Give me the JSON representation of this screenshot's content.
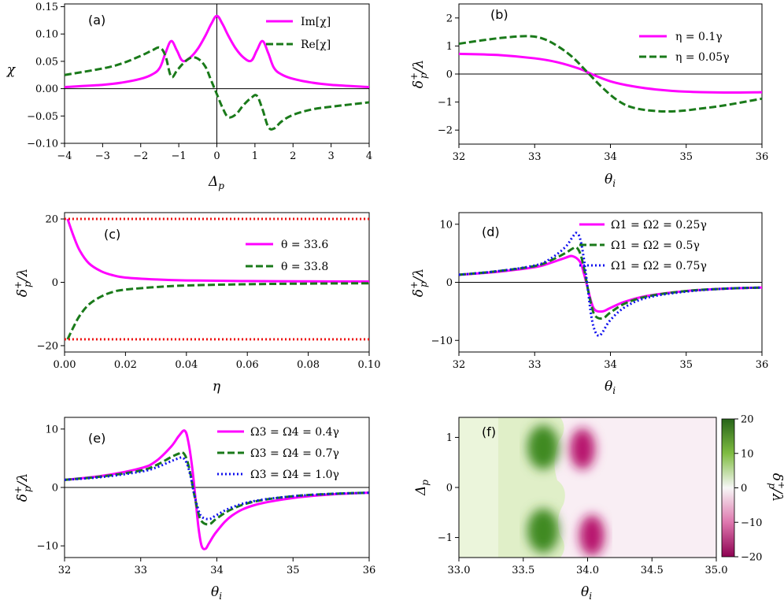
{
  "colors": {
    "magenta": "#ff00ff",
    "green": "#1a7a1a",
    "blue": "#1010ee",
    "red": "#ee1010",
    "cmap_pos": "#276419",
    "cmap_neg": "#c51b7d"
  },
  "chart_data": [
    {
      "id": "a",
      "panel_label": "(a)",
      "type": "line",
      "xlabel": "Δp",
      "ylabel": "χ",
      "xlim": [
        -4,
        4
      ],
      "ylim": [
        -0.1,
        0.155
      ],
      "xticks": [
        -4,
        -3,
        -2,
        -1,
        0,
        1,
        2,
        3,
        4
      ],
      "xtick_labels": [
        "−4",
        "−3",
        "−2",
        "−1",
        "0",
        "1",
        "2",
        "3",
        "4"
      ],
      "yticks": [
        -0.1,
        -0.05,
        0.0,
        0.05,
        0.1,
        0.15
      ],
      "ytick_labels": [
        "−0.10",
        "−0.05",
        "0.00",
        "0.05",
        "0.10",
        "0.15"
      ],
      "zero_lines": [
        "h",
        "v"
      ],
      "legend_position": "top-right",
      "series": [
        {
          "name": "Im[χ]",
          "style": "solid",
          "color": "magenta",
          "x": [
            -4,
            -3,
            -2.5,
            -2,
            -1.7,
            -1.5,
            -1.35,
            -1.2,
            -1.05,
            -0.9,
            -0.7,
            -0.5,
            -0.3,
            -0.15,
            0,
            0.15,
            0.3,
            0.5,
            0.7,
            0.9,
            1.05,
            1.2,
            1.35,
            1.5,
            1.7,
            2,
            2.5,
            3,
            4
          ],
          "y": [
            0.003,
            0.007,
            0.011,
            0.018,
            0.026,
            0.038,
            0.065,
            0.087,
            0.07,
            0.051,
            0.057,
            0.073,
            0.097,
            0.118,
            0.133,
            0.118,
            0.097,
            0.073,
            0.057,
            0.051,
            0.07,
            0.087,
            0.065,
            0.038,
            0.026,
            0.018,
            0.011,
            0.007,
            0.003
          ]
        },
        {
          "name": "Re[χ]",
          "style": "dashed",
          "color": "green",
          "x": [
            -4,
            -3,
            -2.5,
            -2,
            -1.7,
            -1.5,
            -1.35,
            -1.2,
            -1.05,
            -0.9,
            -0.7,
            -0.5,
            -0.3,
            -0.15,
            0,
            0.15,
            0.3,
            0.5,
            0.7,
            0.9,
            1.05,
            1.2,
            1.35,
            1.5,
            1.7,
            2,
            2.5,
            3,
            4
          ],
          "y": [
            0.025,
            0.037,
            0.046,
            0.06,
            0.07,
            0.075,
            0.06,
            0.022,
            0.033,
            0.045,
            0.056,
            0.055,
            0.04,
            0.015,
            -0.01,
            -0.035,
            -0.052,
            -0.047,
            -0.03,
            -0.017,
            -0.013,
            -0.038,
            -0.07,
            -0.073,
            -0.06,
            -0.048,
            -0.038,
            -0.033,
            -0.025
          ]
        }
      ]
    },
    {
      "id": "b",
      "panel_label": "(b)",
      "type": "line",
      "xlabel": "θi",
      "ylabel": "δp+/λ",
      "xlim": [
        32,
        36
      ],
      "ylim": [
        -2.5,
        2.5
      ],
      "xticks": [
        32,
        33,
        34,
        35,
        36
      ],
      "xtick_labels": [
        "32",
        "33",
        "34",
        "35",
        "36"
      ],
      "yticks": [
        -2,
        -1,
        0,
        1,
        2
      ],
      "ytick_labels": [
        "−2",
        "−1",
        "0",
        "1",
        "2"
      ],
      "zero_lines": [
        "h"
      ],
      "legend_position": "top-right",
      "series": [
        {
          "name": "η = 0.1γ",
          "style": "solid",
          "color": "magenta",
          "x": [
            32,
            32.5,
            33,
            33.3,
            33.6,
            33.75,
            34,
            34.3,
            34.6,
            35,
            35.5,
            36
          ],
          "y": [
            0.72,
            0.68,
            0.56,
            0.42,
            0.18,
            0.0,
            -0.26,
            -0.44,
            -0.55,
            -0.63,
            -0.66,
            -0.65
          ]
        },
        {
          "name": "η = 0.05γ",
          "style": "dashed",
          "color": "green",
          "x": [
            32,
            32.3,
            32.6,
            32.9,
            33.1,
            33.3,
            33.5,
            33.7,
            33.9,
            34.1,
            34.3,
            34.6,
            34.9,
            35.2,
            35.5,
            36
          ],
          "y": [
            1.08,
            1.2,
            1.3,
            1.35,
            1.27,
            1.0,
            0.6,
            0.05,
            -0.5,
            -0.95,
            -1.2,
            -1.32,
            -1.32,
            -1.23,
            -1.12,
            -0.88
          ]
        }
      ]
    },
    {
      "id": "c",
      "panel_label": "(c)",
      "type": "line",
      "xlabel": "η",
      "ylabel": "δp+/λ",
      "xlim": [
        0,
        0.1
      ],
      "ylim": [
        -22,
        22
      ],
      "xticks": [
        0,
        0.02,
        0.04,
        0.06,
        0.08,
        0.1
      ],
      "xtick_labels": [
        "0.00",
        "0.02",
        "0.04",
        "0.06",
        "0.08",
        "0.10"
      ],
      "yticks": [
        -20,
        0,
        20
      ],
      "ytick_labels": [
        "−20",
        "0",
        "20"
      ],
      "zero_lines": [],
      "legend_position": "top-right",
      "series": [
        {
          "name": "θ = 33.6",
          "style": "solid",
          "color": "magenta",
          "x": [
            0.001,
            0.003,
            0.005,
            0.008,
            0.012,
            0.016,
            0.02,
            0.03,
            0.04,
            0.06,
            0.08,
            0.1
          ],
          "y": [
            20,
            14.5,
            10,
            6,
            3.5,
            2.2,
            1.5,
            0.9,
            0.6,
            0.4,
            0.3,
            0.25
          ]
        },
        {
          "name": "θ = 33.8",
          "style": "dashed",
          "color": "green",
          "x": [
            0.001,
            0.003,
            0.005,
            0.008,
            0.012,
            0.016,
            0.02,
            0.03,
            0.04,
            0.06,
            0.08,
            0.1
          ],
          "y": [
            -18,
            -14,
            -10.5,
            -7,
            -4.5,
            -3,
            -2.3,
            -1.5,
            -1.0,
            -0.6,
            -0.4,
            -0.3
          ]
        },
        {
          "name": "",
          "style": "dotted",
          "color": "red",
          "x": [
            0,
            0.1
          ],
          "y": [
            20,
            20
          ]
        },
        {
          "name": "",
          "style": "dotted",
          "color": "red",
          "x": [
            0,
            0.1
          ],
          "y": [
            -18,
            -18
          ]
        }
      ]
    },
    {
      "id": "d",
      "panel_label": "(d)",
      "type": "line",
      "xlabel": "θi",
      "ylabel": "δp+/λ",
      "xlim": [
        32,
        36
      ],
      "ylim": [
        -12,
        12
      ],
      "xticks": [
        32,
        33,
        34,
        35,
        36
      ],
      "xtick_labels": [
        "32",
        "33",
        "34",
        "35",
        "36"
      ],
      "yticks": [
        -10,
        0,
        10
      ],
      "ytick_labels": [
        "−10",
        "0",
        "10"
      ],
      "zero_lines": [
        "h"
      ],
      "legend_position": "top-right",
      "series": [
        {
          "name": "Ω1 = Ω2 = 0.25γ",
          "style": "solid",
          "color": "magenta",
          "x": [
            32,
            32.5,
            33,
            33.2,
            33.4,
            33.5,
            33.6,
            33.65,
            33.7,
            33.75,
            33.8,
            33.9,
            34,
            34.2,
            34.5,
            35,
            35.5,
            36
          ],
          "y": [
            1.3,
            1.8,
            2.6,
            3.3,
            4.2,
            4.5,
            3.5,
            1.5,
            -1,
            -3.5,
            -4.8,
            -5,
            -4.4,
            -3.3,
            -2.3,
            -1.5,
            -1.1,
            -0.9
          ]
        },
        {
          "name": "Ω1 = Ω2 = 0.5γ",
          "style": "dashed",
          "color": "green",
          "x": [
            32,
            32.5,
            33,
            33.2,
            33.4,
            33.5,
            33.55,
            33.6,
            33.65,
            33.7,
            33.75,
            33.8,
            33.9,
            34,
            34.2,
            34.5,
            35,
            35.5,
            36
          ],
          "y": [
            1.3,
            1.9,
            2.8,
            3.7,
            5.0,
            5.8,
            6.0,
            5.0,
            2.5,
            -1,
            -4,
            -5.8,
            -6.2,
            -5.2,
            -3.6,
            -2.4,
            -1.5,
            -1.1,
            -0.9
          ]
        },
        {
          "name": "Ω1 = Ω2 = 0.75γ",
          "style": "dotted",
          "color": "blue",
          "x": [
            32,
            32.5,
            33,
            33.2,
            33.4,
            33.5,
            33.55,
            33.6,
            33.65,
            33.7,
            33.75,
            33.8,
            33.85,
            33.9,
            34,
            34.2,
            34.5,
            35,
            35.5,
            36
          ],
          "y": [
            1.3,
            1.9,
            2.9,
            4.0,
            6.0,
            7.8,
            8.5,
            7.5,
            4,
            -1,
            -6,
            -8.5,
            -9.2,
            -8.5,
            -6.5,
            -4.2,
            -2.6,
            -1.6,
            -1.1,
            -0.9
          ]
        }
      ]
    },
    {
      "id": "e",
      "panel_label": "(e)",
      "type": "line",
      "xlabel": "θi",
      "ylabel": "δp+/λ",
      "xlim": [
        32,
        36
      ],
      "ylim": [
        -12,
        12
      ],
      "xticks": [
        32,
        33,
        34,
        35,
        36
      ],
      "xtick_labels": [
        "32",
        "33",
        "34",
        "35",
        "36"
      ],
      "yticks": [
        -10,
        0,
        10
      ],
      "ytick_labels": [
        "−10",
        "0",
        "10"
      ],
      "zero_lines": [
        "h"
      ],
      "legend_position": "top-right",
      "series": [
        {
          "name": "Ω3 = Ω4 = 0.4γ",
          "style": "solid",
          "color": "magenta",
          "x": [
            32,
            32.5,
            33,
            33.2,
            33.4,
            33.5,
            33.58,
            33.63,
            33.68,
            33.72,
            33.76,
            33.8,
            33.85,
            33.9,
            34,
            34.2,
            34.5,
            35,
            35.5,
            36
          ],
          "y": [
            1.3,
            2.0,
            3.3,
            4.5,
            7.0,
            8.8,
            9.7,
            7.5,
            3,
            -2,
            -7,
            -10,
            -10.5,
            -9.5,
            -7.5,
            -4.8,
            -3.0,
            -1.8,
            -1.2,
            -0.9
          ]
        },
        {
          "name": "Ω3 = Ω4 = 0.7γ",
          "style": "dashed",
          "color": "green",
          "x": [
            32,
            32.5,
            33,
            33.2,
            33.4,
            33.5,
            33.55,
            33.6,
            33.65,
            33.7,
            33.75,
            33.8,
            33.9,
            34,
            34.2,
            34.5,
            35,
            35.5,
            36
          ],
          "y": [
            1.3,
            1.9,
            2.9,
            3.8,
            5.2,
            5.8,
            6.0,
            5.0,
            2.5,
            -1,
            -4,
            -5.8,
            -6.3,
            -5.3,
            -3.7,
            -2.4,
            -1.5,
            -1.1,
            -0.9
          ]
        },
        {
          "name": "Ω3 = Ω4 = 1.0γ",
          "style": "dotted",
          "color": "blue",
          "x": [
            32,
            32.5,
            33,
            33.2,
            33.4,
            33.5,
            33.55,
            33.6,
            33.65,
            33.7,
            33.75,
            33.8,
            33.9,
            34,
            34.2,
            34.5,
            35,
            35.5,
            36
          ],
          "y": [
            1.3,
            1.8,
            2.7,
            3.4,
            4.5,
            5.0,
            5.1,
            4.3,
            2.2,
            -1,
            -3.5,
            -5.0,
            -5.4,
            -4.7,
            -3.4,
            -2.3,
            -1.5,
            -1.1,
            -0.9
          ]
        }
      ]
    },
    {
      "id": "f",
      "panel_label": "(f)",
      "type": "heatmap",
      "xlabel": "θi",
      "ylabel": "Δp",
      "xlim": [
        33.0,
        35.0
      ],
      "ylim": [
        -1.4,
        1.4
      ],
      "xticks": [
        33.0,
        33.5,
        34.0,
        34.5,
        35.0
      ],
      "xtick_labels": [
        "33.0",
        "33.5",
        "34.0",
        "34.5",
        "35.0"
      ],
      "yticks": [
        -1,
        0,
        1
      ],
      "ytick_labels": [
        "−1",
        "0",
        "1"
      ],
      "colorbar": {
        "label": "δp+/λ",
        "range": [
          -20,
          20
        ],
        "ticks": [
          -20,
          -10,
          0,
          10,
          20
        ],
        "tick_labels": [
          "−20",
          "−10",
          "0",
          "10",
          "20"
        ]
      },
      "features": [
        {
          "kind": "max",
          "theta": 33.7,
          "delta": 0.8,
          "value": 17
        },
        {
          "kind": "max",
          "theta": 33.7,
          "delta": -0.8,
          "value": 17
        },
        {
          "kind": "min",
          "theta": 34.1,
          "delta": 0.75,
          "value": -17
        },
        {
          "kind": "min",
          "theta": 34.1,
          "delta": -0.85,
          "value": -17
        }
      ]
    }
  ]
}
